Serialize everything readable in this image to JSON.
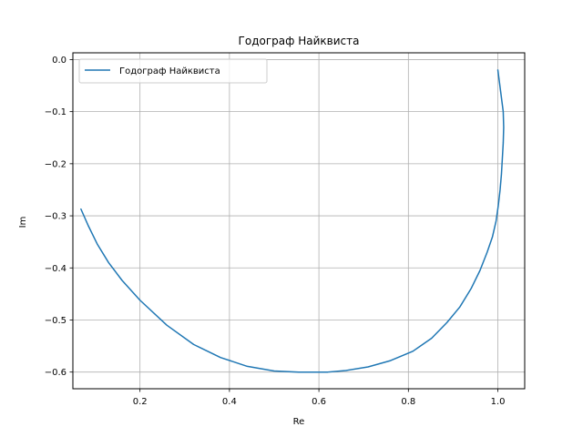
{
  "chart_data": {
    "type": "line",
    "title": "Годограф Найквиста",
    "xlabel": "Re",
    "ylabel": "Im",
    "xlim": [
      0.05,
      1.06
    ],
    "ylim": [
      -0.632,
      0.013
    ],
    "xticks": [
      0.2,
      0.4,
      0.6,
      0.8,
      1.0
    ],
    "xtick_labels": [
      "0.2",
      "0.4",
      "0.6",
      "0.8",
      "1.0"
    ],
    "yticks": [
      0.0,
      -0.1,
      -0.2,
      -0.3,
      -0.4,
      -0.5,
      -0.6
    ],
    "ytick_labels": [
      "0.0",
      "−0.1",
      "−0.2",
      "−0.3",
      "−0.4",
      "−0.5",
      "−0.6"
    ],
    "grid": true,
    "legend_position": "top-left",
    "series": [
      {
        "name": "Годограф Найквиста",
        "color": "#1f77b4",
        "x": [
          1.0,
          1.006,
          1.012,
          1.013,
          1.012,
          1.01,
          1.008,
          1.005,
          1.001,
          0.996,
          0.988,
          0.976,
          0.96,
          0.94,
          0.915,
          0.886,
          0.852,
          0.81,
          0.76,
          0.71,
          0.66,
          0.62,
          0.58,
          0.555,
          0.5,
          0.44,
          0.38,
          0.32,
          0.26,
          0.2,
          0.16,
          0.13,
          0.105,
          0.085,
          0.068
        ],
        "y": [
          -0.02,
          -0.06,
          -0.1,
          -0.13,
          -0.16,
          -0.19,
          -0.22,
          -0.25,
          -0.28,
          -0.31,
          -0.34,
          -0.37,
          -0.405,
          -0.44,
          -0.475,
          -0.505,
          -0.535,
          -0.56,
          -0.578,
          -0.59,
          -0.597,
          -0.6,
          -0.6,
          -0.6,
          -0.598,
          -0.589,
          -0.572,
          -0.547,
          -0.51,
          -0.462,
          -0.424,
          -0.39,
          -0.355,
          -0.32,
          -0.287
        ]
      }
    ]
  }
}
